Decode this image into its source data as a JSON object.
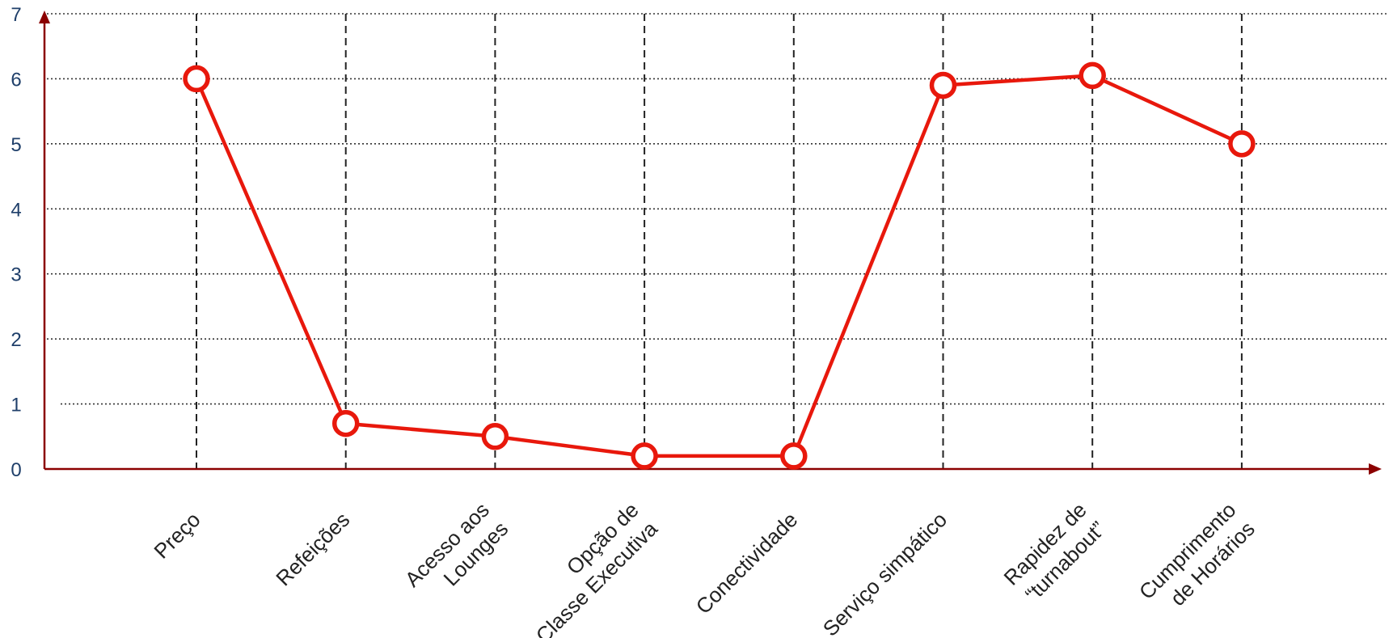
{
  "chart_data": {
    "type": "line",
    "title": "",
    "xlabel": "",
    "ylabel": "",
    "categories": [
      [
        "Preço"
      ],
      [
        "Refeições"
      ],
      [
        "Acesso aos",
        "Lounges"
      ],
      [
        "Opção de",
        "Classe Executiva"
      ],
      [
        "Conectividade"
      ],
      [
        "Serviço simpático"
      ],
      [
        "Rapidez de",
        "“turnabout”"
      ],
      [
        "Cumprimento",
        "de Horários"
      ]
    ],
    "series": [
      {
        "values": [
          6.0,
          0.7,
          0.5,
          0.2,
          0.2,
          5.9,
          6.05,
          5.0
        ],
        "color": "#e8180c"
      }
    ],
    "y_ticks": [
      "0",
      "1",
      "2",
      "3",
      "4",
      "5",
      "6",
      "7"
    ],
    "ylim": [
      0,
      7
    ],
    "grid": true,
    "axis_color": "#8b0000",
    "tick_color": "#1f3f6a"
  }
}
